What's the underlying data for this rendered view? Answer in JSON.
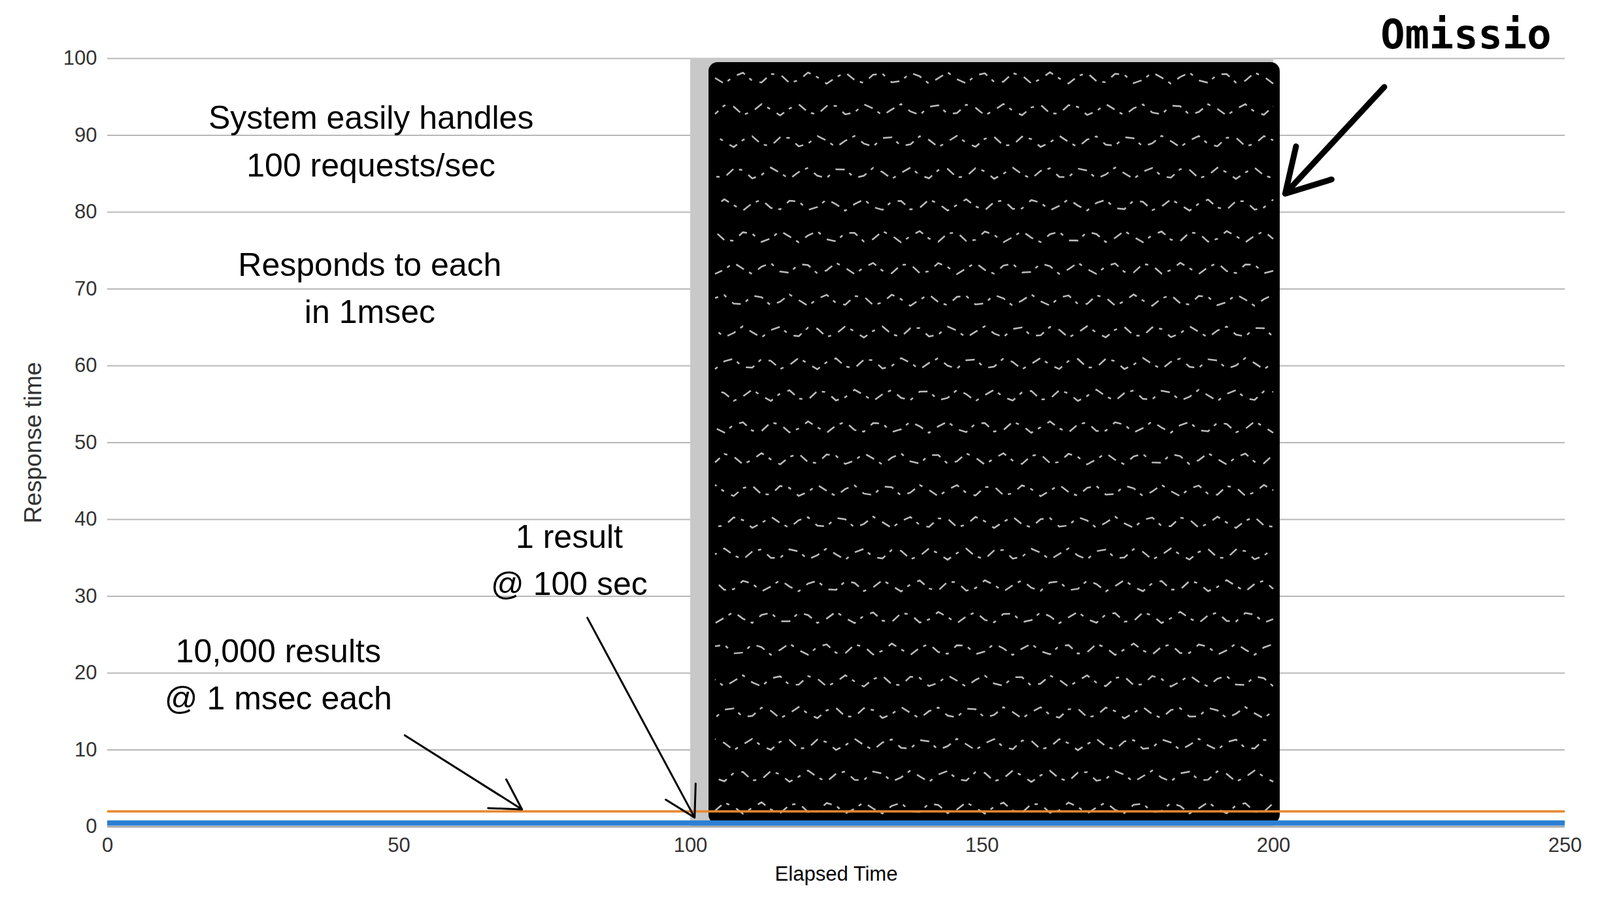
{
  "chart_data": {
    "type": "line",
    "x_label": "Elapsed Time",
    "y_label": "Response time",
    "xlim": [
      0,
      250
    ],
    "xticks": [
      0,
      50,
      100,
      150,
      200,
      250
    ],
    "ylim": [
      0,
      100
    ],
    "yticks": [
      0,
      10,
      20,
      30,
      40,
      50,
      60,
      70,
      80,
      90,
      100
    ],
    "grid": true,
    "series": [
      {
        "type": "line",
        "color": "#2b7fd3",
        "x": [
          0,
          250
        ],
        "values": [
          0.5,
          0.5
        ]
      },
      {
        "type": "line",
        "color": "#e8872e",
        "x": [
          0,
          250
        ],
        "values": [
          2,
          2
        ]
      },
      {
        "type": "area",
        "color": "#c8c8c8",
        "x": [
          100,
          200
        ],
        "values": [
          100,
          100
        ]
      }
    ],
    "annotations": [
      {
        "text": "System easily handles\n100 requests/sec",
        "x": 45.2,
        "y": 89.7
      },
      {
        "text": "Responds to each\nin 1msec",
        "x": 45,
        "y": 70.6
      },
      {
        "text": "1 result\n@ 100 sec",
        "x": 79.2,
        "y": 35.2,
        "arrow": [
          82.3,
          27.2,
          100.7,
          1.2
        ]
      },
      {
        "text": "10,000 results\n@ 1 msec each",
        "x": 29.3,
        "y": 20.3,
        "arrow": [
          51,
          11.9,
          71.1,
          2.25
        ]
      }
    ],
    "stamp": {
      "text": "Omissio",
      "x": 233,
      "y": 103,
      "arrow": [
        219,
        96.3,
        202,
        82.4
      ]
    }
  }
}
